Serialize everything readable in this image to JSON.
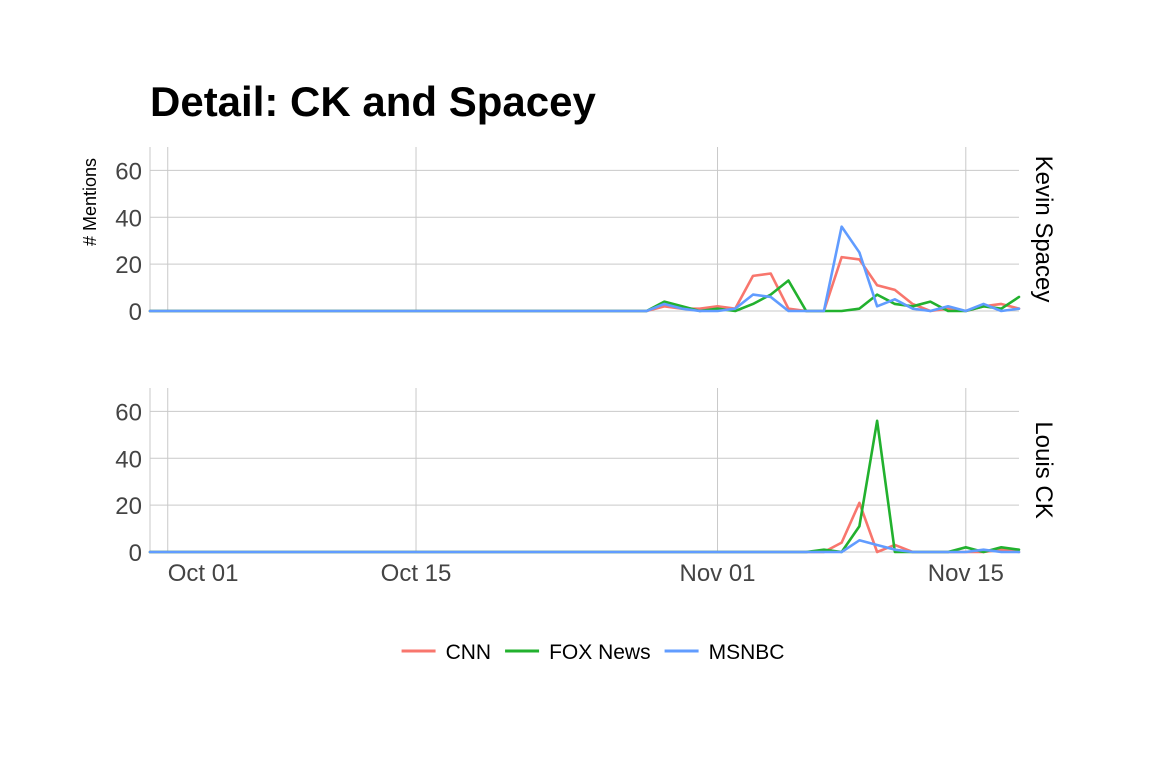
{
  "chart_data": {
    "type": "line",
    "title": "Detail: CK and Spacey",
    "ylabel": "# Mentions",
    "xlabel": "",
    "ylim": [
      0,
      70
    ],
    "yticks": [
      0,
      20,
      40,
      60
    ],
    "xlim": [
      "2017-09-30",
      "2017-11-18"
    ],
    "xticks": [
      {
        "date": "2017-10-01",
        "label": "Oct 01"
      },
      {
        "date": "2017-10-15",
        "label": "Oct 15"
      },
      {
        "date": "2017-11-01",
        "label": "Nov 01"
      },
      {
        "date": "2017-11-15",
        "label": "Nov 15"
      }
    ],
    "grid": true,
    "legend": "bottom",
    "panels": [
      {
        "name": "Kevin Spacey",
        "series": [
          {
            "name": "CNN",
            "color": "#F8766D",
            "points": [
              [
                "2017-09-30",
                0
              ],
              [
                "2017-10-28",
                0
              ],
              [
                "2017-10-29",
                2
              ],
              [
                "2017-10-30",
                1
              ],
              [
                "2017-10-31",
                1
              ],
              [
                "2017-11-01",
                2
              ],
              [
                "2017-11-02",
                1
              ],
              [
                "2017-11-03",
                15
              ],
              [
                "2017-11-04",
                16
              ],
              [
                "2017-11-05",
                1
              ],
              [
                "2017-11-06",
                0
              ],
              [
                "2017-11-07",
                0
              ],
              [
                "2017-11-08",
                23
              ],
              [
                "2017-11-09",
                22
              ],
              [
                "2017-11-10",
                11
              ],
              [
                "2017-11-11",
                9
              ],
              [
                "2017-11-12",
                3
              ],
              [
                "2017-11-13",
                0
              ],
              [
                "2017-11-14",
                1
              ],
              [
                "2017-11-15",
                0
              ],
              [
                "2017-11-16",
                2
              ],
              [
                "2017-11-17",
                3
              ],
              [
                "2017-11-18",
                1
              ]
            ]
          },
          {
            "name": "FOX News",
            "color": "#22B12E",
            "points": [
              [
                "2017-09-30",
                0
              ],
              [
                "2017-10-28",
                0
              ],
              [
                "2017-10-29",
                4
              ],
              [
                "2017-10-30",
                2
              ],
              [
                "2017-10-31",
                0
              ],
              [
                "2017-11-01",
                1
              ],
              [
                "2017-11-02",
                0
              ],
              [
                "2017-11-03",
                3
              ],
              [
                "2017-11-04",
                7
              ],
              [
                "2017-11-05",
                13
              ],
              [
                "2017-11-06",
                0
              ],
              [
                "2017-11-07",
                0
              ],
              [
                "2017-11-08",
                0
              ],
              [
                "2017-11-09",
                1
              ],
              [
                "2017-11-10",
                7
              ],
              [
                "2017-11-11",
                3
              ],
              [
                "2017-11-12",
                2
              ],
              [
                "2017-11-13",
                4
              ],
              [
                "2017-11-14",
                0
              ],
              [
                "2017-11-15",
                0
              ],
              [
                "2017-11-16",
                2
              ],
              [
                "2017-11-17",
                1
              ],
              [
                "2017-11-18",
                6
              ]
            ]
          },
          {
            "name": "MSNBC",
            "color": "#619CFF",
            "points": [
              [
                "2017-09-30",
                0
              ],
              [
                "2017-10-28",
                0
              ],
              [
                "2017-10-29",
                3
              ],
              [
                "2017-10-30",
                1
              ],
              [
                "2017-10-31",
                0
              ],
              [
                "2017-11-01",
                0
              ],
              [
                "2017-11-02",
                1
              ],
              [
                "2017-11-03",
                7
              ],
              [
                "2017-11-04",
                6
              ],
              [
                "2017-11-05",
                0
              ],
              [
                "2017-11-06",
                0
              ],
              [
                "2017-11-07",
                0
              ],
              [
                "2017-11-08",
                36
              ],
              [
                "2017-11-09",
                25
              ],
              [
                "2017-11-10",
                2
              ],
              [
                "2017-11-11",
                5
              ],
              [
                "2017-11-12",
                1
              ],
              [
                "2017-11-13",
                0
              ],
              [
                "2017-11-14",
                2
              ],
              [
                "2017-11-15",
                0
              ],
              [
                "2017-11-16",
                3
              ],
              [
                "2017-11-17",
                0
              ],
              [
                "2017-11-18",
                1
              ]
            ]
          }
        ]
      },
      {
        "name": "Louis CK",
        "series": [
          {
            "name": "CNN",
            "color": "#F8766D",
            "points": [
              [
                "2017-09-30",
                0
              ],
              [
                "2017-11-06",
                0
              ],
              [
                "2017-11-07",
                0
              ],
              [
                "2017-11-08",
                4
              ],
              [
                "2017-11-09",
                21
              ],
              [
                "2017-11-10",
                0
              ],
              [
                "2017-11-11",
                3
              ],
              [
                "2017-11-12",
                0
              ],
              [
                "2017-11-13",
                0
              ],
              [
                "2017-11-14",
                0
              ],
              [
                "2017-11-15",
                0
              ],
              [
                "2017-11-16",
                0
              ],
              [
                "2017-11-17",
                1
              ],
              [
                "2017-11-18",
                0
              ]
            ]
          },
          {
            "name": "FOX News",
            "color": "#22B12E",
            "points": [
              [
                "2017-09-30",
                0
              ],
              [
                "2017-11-06",
                0
              ],
              [
                "2017-11-07",
                1
              ],
              [
                "2017-11-08",
                0
              ],
              [
                "2017-11-09",
                11
              ],
              [
                "2017-11-10",
                56
              ],
              [
                "2017-11-11",
                0
              ],
              [
                "2017-11-12",
                0
              ],
              [
                "2017-11-13",
                0
              ],
              [
                "2017-11-14",
                0
              ],
              [
                "2017-11-15",
                2
              ],
              [
                "2017-11-16",
                0
              ],
              [
                "2017-11-17",
                2
              ],
              [
                "2017-11-18",
                1
              ]
            ]
          },
          {
            "name": "MSNBC",
            "color": "#619CFF",
            "points": [
              [
                "2017-09-30",
                0
              ],
              [
                "2017-11-07",
                0
              ],
              [
                "2017-11-08",
                0
              ],
              [
                "2017-11-09",
                5
              ],
              [
                "2017-11-10",
                3
              ],
              [
                "2017-11-11",
                1
              ],
              [
                "2017-11-12",
                0
              ],
              [
                "2017-11-13",
                0
              ],
              [
                "2017-11-14",
                0
              ],
              [
                "2017-11-15",
                0
              ],
              [
                "2017-11-16",
                1
              ],
              [
                "2017-11-17",
                0
              ],
              [
                "2017-11-18",
                0
              ]
            ]
          }
        ]
      }
    ]
  }
}
